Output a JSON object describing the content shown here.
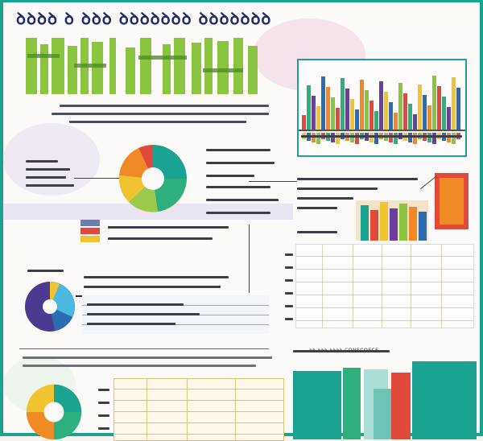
{
  "title": "SFERCHES ARA PORSOULIES TOESSOLAIUS",
  "title_display": "ꝺꝺꝺ⁠ꝺ ꝺ ꝺꝺꝺ ꝺꝺꝺꝺꝺꝺꝺ ꝺꝺꝺꝺꝺꝺꝺ",
  "banner_text": "",
  "icons": {
    "pie_top": "pie-chart-icon",
    "pie_mid": "pie-chart-icon",
    "pie_bottom": "donut-chart-icon",
    "bars_top": "bar-chart-icon",
    "bars_bottom": "bar-chart-icon"
  },
  "colors": {
    "frame": "#1aa391",
    "title": "#232a6a",
    "banner_green": "#8bc43f",
    "banner_green_dark": "#5a9e2e",
    "accent_orange": "#f08a24",
    "accent_red": "#e14a3a",
    "accent_teal": "#1aa391",
    "accent_purple": "#6b3fa0"
  },
  "right_label": "CONSCOECE",
  "bottom_right_caption": "ꝺꝺ ꝺꝺꝺ ꝺꝺꝺꝺ CONSCOECE"
}
